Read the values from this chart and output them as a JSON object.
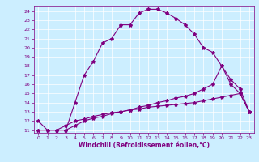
{
  "xlabel": "Windchill (Refroidissement éolien,°C)",
  "bg_color": "#cceeff",
  "line_color": "#800080",
  "grid_color": "#ffffff",
  "xlim": [
    -0.5,
    23.5
  ],
  "ylim": [
    10.7,
    24.5
  ],
  "yticks": [
    11,
    12,
    13,
    14,
    15,
    16,
    17,
    18,
    19,
    20,
    21,
    22,
    23,
    24
  ],
  "xticks": [
    0,
    1,
    2,
    3,
    4,
    5,
    6,
    7,
    8,
    9,
    10,
    11,
    12,
    13,
    14,
    15,
    16,
    17,
    18,
    19,
    20,
    21,
    22,
    23
  ],
  "curve1_x": [
    0,
    1,
    2,
    3,
    4,
    5,
    6,
    7,
    8,
    9,
    10,
    11,
    12,
    13,
    14,
    15,
    16,
    17,
    18,
    19,
    20,
    21,
    22,
    23
  ],
  "curve1_y": [
    12.0,
    11.0,
    11.0,
    11.0,
    14.0,
    17.0,
    18.5,
    20.5,
    21.0,
    22.5,
    22.5,
    23.8,
    24.2,
    24.2,
    23.8,
    23.2,
    22.5,
    21.5,
    20.0,
    19.5,
    18.0,
    16.0,
    15.0,
    13.0
  ],
  "curve2_x": [
    0,
    1,
    2,
    3,
    4,
    5,
    6,
    7,
    8,
    9,
    10,
    11,
    12,
    13,
    14,
    15,
    16,
    17,
    18,
    19,
    20,
    21,
    22,
    23
  ],
  "curve2_y": [
    11.0,
    11.0,
    11.0,
    11.0,
    11.5,
    12.0,
    12.3,
    12.5,
    12.8,
    13.0,
    13.2,
    13.5,
    13.7,
    14.0,
    14.2,
    14.5,
    14.7,
    15.0,
    15.5,
    16.0,
    18.0,
    16.5,
    15.5,
    13.0
  ],
  "curve3_x": [
    0,
    1,
    2,
    3,
    4,
    5,
    6,
    7,
    8,
    9,
    10,
    11,
    12,
    13,
    14,
    15,
    16,
    17,
    18,
    19,
    20,
    21,
    22,
    23
  ],
  "curve3_y": [
    11.0,
    11.0,
    11.0,
    11.5,
    12.0,
    12.2,
    12.5,
    12.7,
    12.9,
    13.0,
    13.2,
    13.3,
    13.5,
    13.6,
    13.7,
    13.8,
    13.9,
    14.0,
    14.2,
    14.4,
    14.6,
    14.8,
    15.0,
    13.0
  ],
  "tick_fontsize": 4.5,
  "xlabel_fontsize": 5.5,
  "marker_size": 3,
  "linewidth": 0.8
}
